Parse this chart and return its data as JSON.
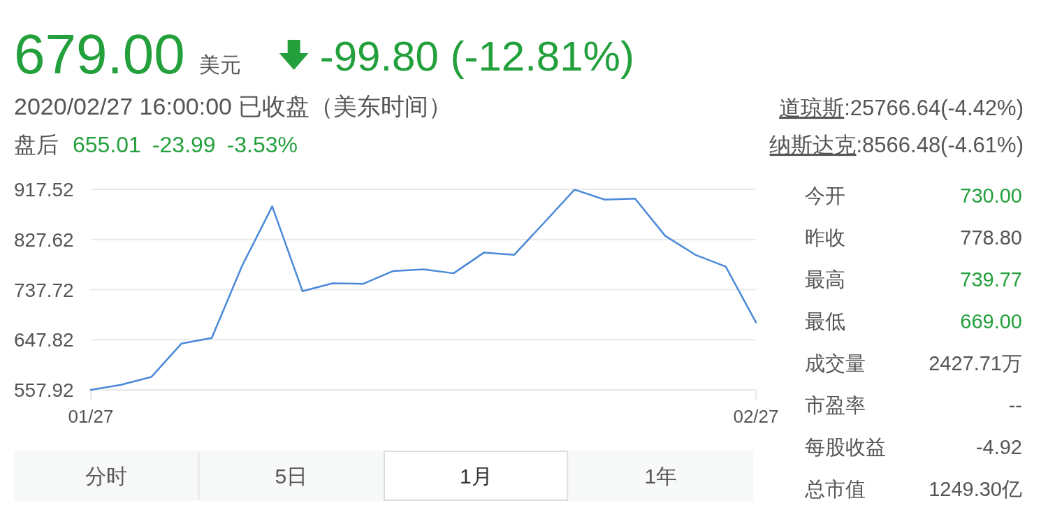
{
  "chart_data": [
    {
      "type": "line",
      "title": "679.00",
      "subtitle": "2020/02/27 16:00:00 已收盘（美东时间）",
      "annotations": [
        "美元",
        "-99.80 (-12.81%)",
        "盘后",
        "655.01",
        "-23.99",
        "-3.53%",
        "道琼斯",
        ":25766.64(-4.42%)",
        "纳斯达克",
        ":8566.48(-4.61%)",
        "分时",
        "5日",
        "1月",
        "1年"
      ],
      "categories": [
        "01/27",
        null,
        null,
        null,
        null,
        null,
        null,
        null,
        null,
        null,
        null,
        null,
        null,
        null,
        null,
        null,
        null,
        null,
        null,
        null,
        null,
        null,
        "02/27"
      ],
      "series": [
        {
          "color": "#4a89d8",
          "values": [
            558,
            567,
            581,
            641,
            651,
            780,
            887,
            735,
            749,
            748,
            771,
            774,
            767,
            804,
            800,
            858,
            917,
            899,
            901,
            834,
            800,
            779,
            679
          ]
        }
      ],
      "ylim": [
        557.92,
        917.52
      ],
      "yticks": [
        557.92,
        647.82,
        737.72,
        827.62,
        917.52
      ],
      "grid": "y"
    },
    {
      "type": "other",
      "categories": [
        "今开",
        "昨收",
        "最高",
        "最低",
        "成交量",
        "市盈率",
        "每股收益",
        "总市值"
      ],
      "value_labels": [
        "730.00",
        "778.80",
        "739.77",
        "669.00",
        "2427.71万",
        "--",
        "-4.92",
        "1249.30亿"
      ],
      "colors": [
        "#23a03c",
        "#555555",
        "#23a03c",
        "#23a03c",
        "#555555",
        "#555555",
        "#555555",
        "#555555"
      ]
    }
  ]
}
